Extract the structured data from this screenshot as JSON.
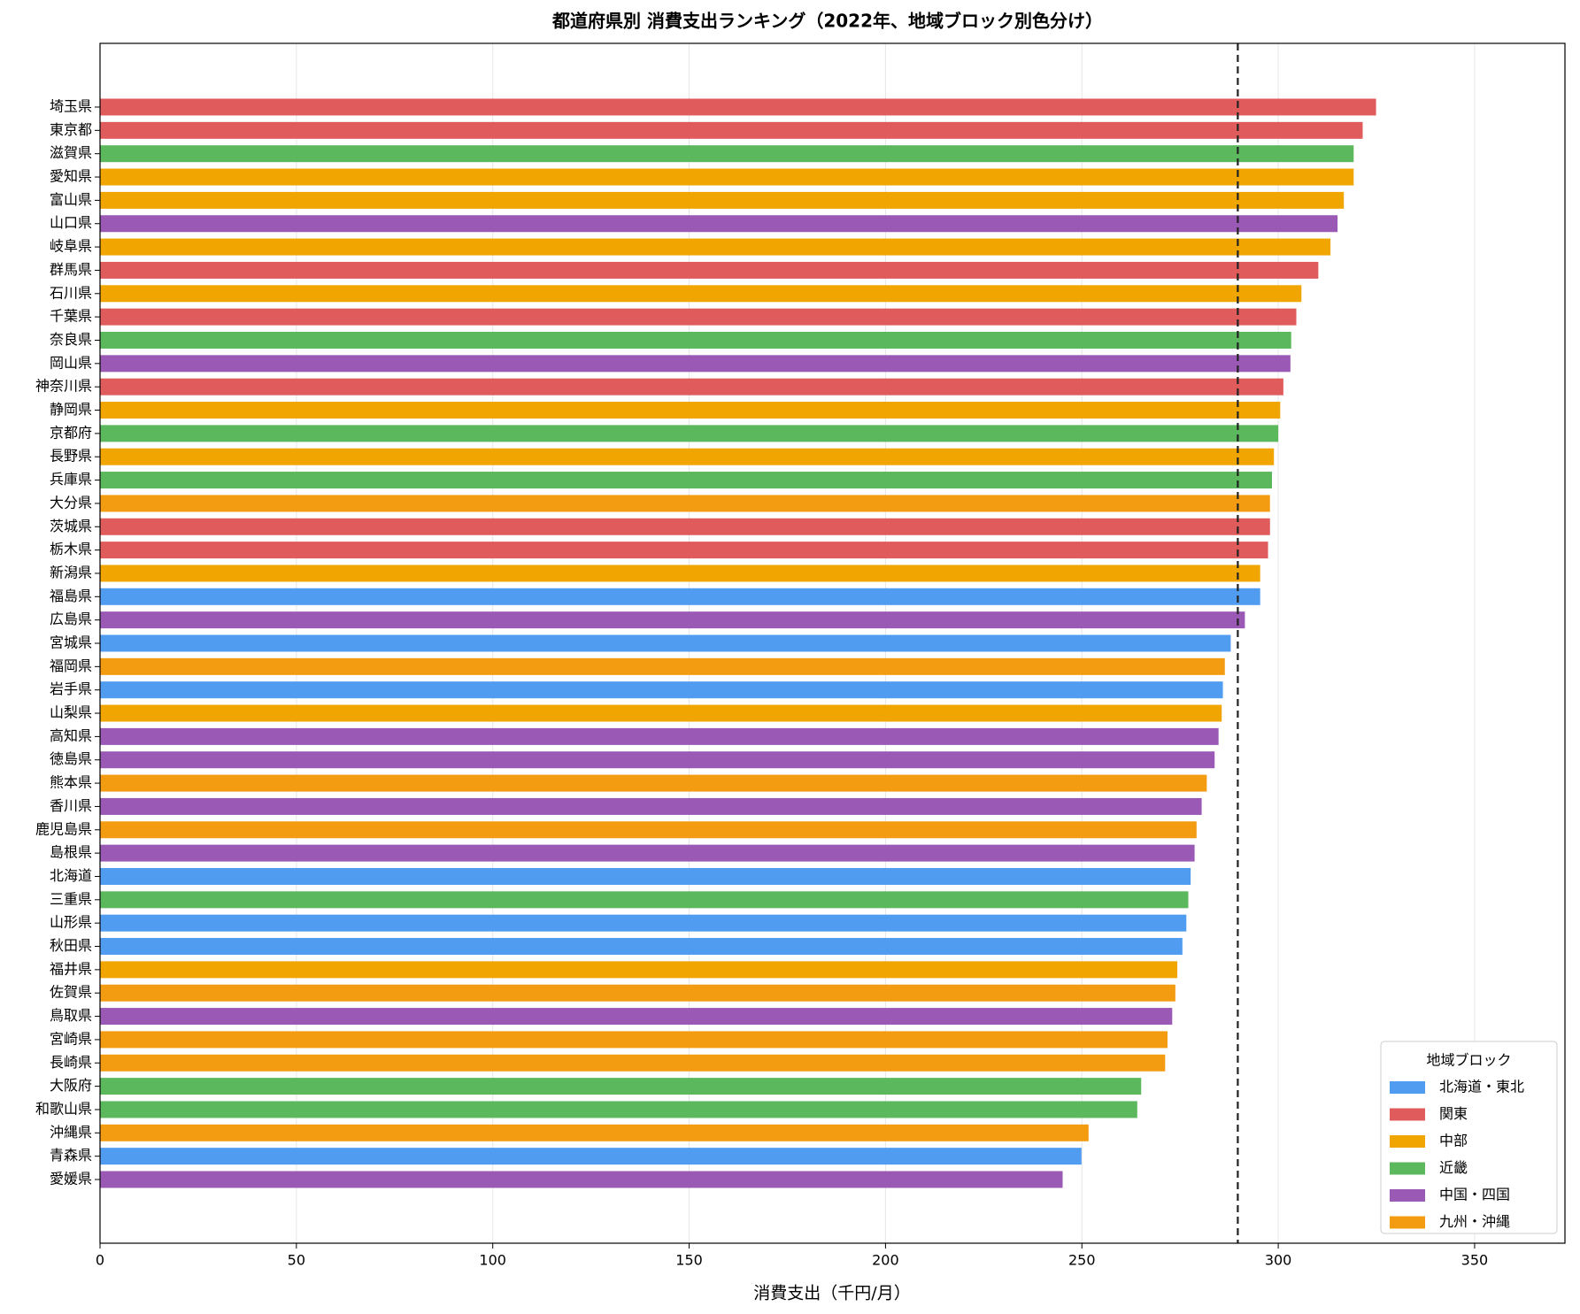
{
  "chart_data": {
    "type": "barh",
    "title": "都道府県別 消費支出ランキング（2022年、地域ブロック別色分け）",
    "x_label": "消費支出（千円/月）",
    "categories": [
      "埼玉県",
      "東京都",
      "滋賀県",
      "愛知県",
      "富山県",
      "山口県",
      "岐阜県",
      "群馬県",
      "石川県",
      "千葉県",
      "奈良県",
      "岡山県",
      "神奈川県",
      "静岡県",
      "京都府",
      "長野県",
      "兵庫県",
      "大分県",
      "茨城県",
      "栃木県",
      "新潟県",
      "福島県",
      "広島県",
      "宮城県",
      "福岡県",
      "岩手県",
      "山梨県",
      "高知県",
      "徳島県",
      "熊本県",
      "香川県",
      "鹿児島県",
      "島根県",
      "北海道",
      "三重県",
      "山形県",
      "秋田県",
      "福井県",
      "佐賀県",
      "鳥取県",
      "宮崎県",
      "長崎県",
      "大阪府",
      "和歌山県",
      "沖縄県",
      "青森県",
      "愛媛県"
    ],
    "values": [
      324.9,
      321.5,
      319.2,
      319.2,
      316.7,
      315.1,
      313.3,
      310.2,
      305.9,
      304.6,
      303.3,
      303.1,
      301.3,
      300.5,
      300.0,
      298.9,
      298.4,
      297.9,
      297.9,
      297.4,
      295.4,
      295.4,
      291.5,
      287.9,
      286.4,
      285.9,
      285.6,
      284.8,
      283.8,
      281.8,
      280.5,
      279.2,
      278.7,
      277.7,
      277.1,
      276.6,
      275.6,
      274.3,
      273.8,
      273.0,
      271.8,
      271.2,
      265.1,
      264.1,
      251.7,
      249.9,
      245.1
    ],
    "region_of": [
      1,
      1,
      3,
      2,
      2,
      4,
      2,
      1,
      2,
      1,
      3,
      4,
      1,
      2,
      3,
      2,
      3,
      5,
      1,
      1,
      2,
      0,
      4,
      0,
      5,
      0,
      2,
      4,
      4,
      5,
      4,
      5,
      4,
      0,
      3,
      0,
      0,
      2,
      5,
      4,
      5,
      5,
      3,
      3,
      5,
      0,
      4
    ],
    "legend_title": "地域ブロック",
    "regions": [
      {
        "name": "北海道・東北",
        "color": "#4f9cf0"
      },
      {
        "name": "関東",
        "color": "#e05c5c"
      },
      {
        "name": "中部",
        "color": "#f0a500"
      },
      {
        "name": "近畿",
        "color": "#5cb85c"
      },
      {
        "name": "中国・四国",
        "color": "#9b59b6"
      },
      {
        "name": "九州・沖縄",
        "color": "#f39c12"
      }
    ],
    "reference_line": 289.7,
    "xlim": [
      0,
      373
    ],
    "xticks": [
      0,
      50,
      100,
      150,
      200,
      250,
      300,
      350
    ],
    "grid": true,
    "legend_position": "lower right"
  }
}
